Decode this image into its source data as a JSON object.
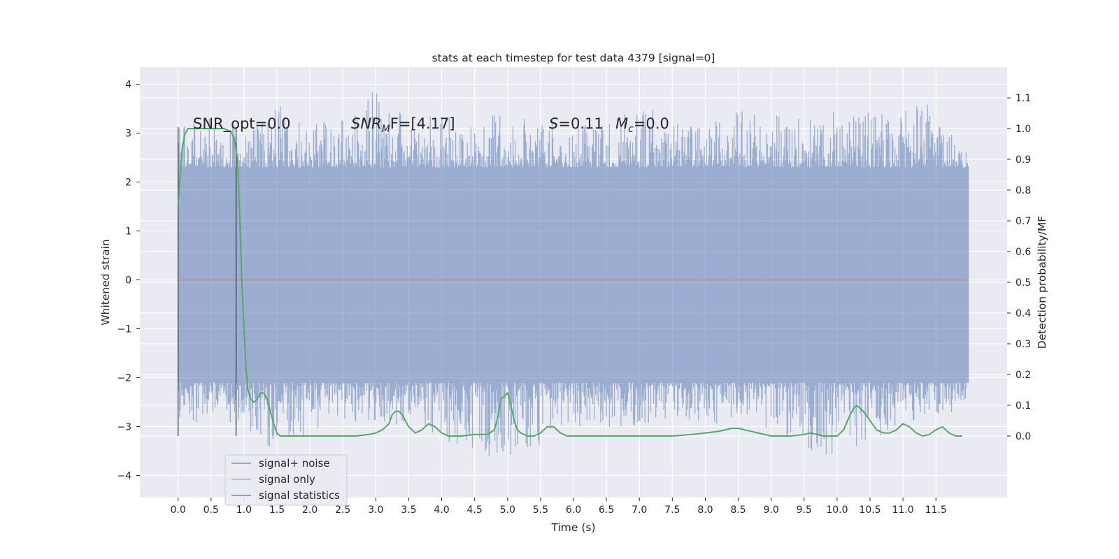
{
  "chart_data": {
    "type": "line",
    "title": "stats at each timestep for test data 4379 [signal=0]",
    "xlabel": "Time (s)",
    "ylabel": "Whitened strain",
    "ylabel_right": "Detection probability/MF",
    "xlim": [
      -0.58,
      12.58
    ],
    "ylim": [
      -4.45,
      4.35
    ],
    "ylim_right": [
      -0.2,
      1.2
    ],
    "xticks": [
      0.0,
      0.5,
      1.0,
      1.5,
      2.0,
      2.5,
      3.0,
      3.5,
      4.0,
      4.5,
      5.0,
      5.5,
      6.0,
      6.5,
      7.0,
      7.5,
      8.0,
      8.5,
      9.0,
      9.5,
      10.0,
      10.5,
      11.0,
      11.5
    ],
    "xtick_labels": [
      "0.0",
      "0.5",
      "1.0",
      "1.5",
      "2.0",
      "2.5",
      "3.0",
      "3.5",
      "4.0",
      "4.5",
      "5.0",
      "5.5",
      "6.0",
      "6.5",
      "7.0",
      "7.5",
      "8.0",
      "8.5",
      "9.0",
      "9.5",
      "10.0",
      "10.5",
      "11.0",
      "11.5"
    ],
    "yticks": [
      -4,
      -3,
      -2,
      -1,
      0,
      1,
      2,
      3,
      4
    ],
    "ytick_labels": [
      "−4",
      "−3",
      "−2",
      "−1",
      "0",
      "1",
      "2",
      "3",
      "4"
    ],
    "yticks_right": [
      0.0,
      0.1,
      0.2,
      0.3,
      0.4,
      0.5,
      0.6,
      0.7,
      0.8,
      0.9,
      1.0,
      1.1
    ],
    "ytick_labels_right": [
      "0.0",
      "0.1",
      "0.2",
      "0.3",
      "0.4",
      "0.5",
      "0.6",
      "0.7",
      "0.8",
      "0.9",
      "1.0",
      "1.1"
    ],
    "grid": true,
    "legend_position": "lower-left",
    "annotations": {
      "snr_opt": "SNR_opt=0.0",
      "snr_mf_italic": "SNR",
      "snr_mf_sub": "M",
      "snr_mf_tail": "F=[4.17]",
      "s_italic": "S",
      "s_tail": "=0.11",
      "mc_italic": "M",
      "mc_sub": "c",
      "mc_tail": "=0.0"
    },
    "vertical_lines": [
      0.0,
      0.88
    ],
    "series": [
      {
        "name": "signal+ noise",
        "color": "#4c72b0",
        "opacity": 0.5,
        "axis": "left",
        "x_range": [
          0.0,
          12.0
        ],
        "band_core": [
          -2.1,
          2.3
        ],
        "envelope": [
          [
            0.0,
            -3.2,
            3.1
          ],
          [
            0.5,
            -2.7,
            3.5
          ],
          [
            1.0,
            -3.1,
            3.0
          ],
          [
            1.5,
            -3.5,
            3.6
          ],
          [
            2.0,
            -3.2,
            3.2
          ],
          [
            2.5,
            -2.9,
            3.3
          ],
          [
            3.0,
            -3.0,
            3.9
          ],
          [
            3.5,
            -3.0,
            3.3
          ],
          [
            4.0,
            -3.3,
            3.4
          ],
          [
            4.5,
            -3.6,
            3.3
          ],
          [
            5.0,
            -3.6,
            3.4
          ],
          [
            5.5,
            -3.4,
            3.2
          ],
          [
            6.0,
            -3.0,
            3.4
          ],
          [
            6.5,
            -3.0,
            3.3
          ],
          [
            7.0,
            -3.1,
            3.6
          ],
          [
            7.5,
            -3.0,
            3.3
          ],
          [
            8.0,
            -3.0,
            3.2
          ],
          [
            8.5,
            -3.0,
            3.5
          ],
          [
            9.0,
            -3.1,
            3.4
          ],
          [
            9.5,
            -3.5,
            3.3
          ],
          [
            10.0,
            -3.6,
            3.5
          ],
          [
            10.5,
            -3.3,
            3.5
          ],
          [
            11.0,
            -3.1,
            3.5
          ],
          [
            11.5,
            -3.0,
            3.8
          ],
          [
            12.0,
            -2.4,
            2.6
          ]
        ]
      },
      {
        "name": "signal only",
        "color": "#dd8452",
        "opacity": 0.6,
        "axis": "left",
        "x": [
          0.0,
          12.0
        ],
        "y": [
          0.0,
          0.0
        ]
      },
      {
        "name": "signal statistics",
        "color": "#55a868",
        "opacity": 1,
        "axis": "right",
        "x": [
          0.0,
          0.03,
          0.06,
          0.1,
          0.15,
          0.2,
          0.3,
          0.4,
          0.5,
          0.6,
          0.7,
          0.8,
          0.85,
          0.9,
          0.93,
          0.96,
          1.0,
          1.03,
          1.06,
          1.1,
          1.15,
          1.2,
          1.25,
          1.3,
          1.35,
          1.4,
          1.45,
          1.5,
          1.55,
          1.6,
          1.7,
          2.0,
          2.5,
          2.7,
          2.9,
          3.0,
          3.1,
          3.2,
          3.25,
          3.3,
          3.35,
          3.4,
          3.5,
          3.6,
          3.7,
          3.75,
          3.8,
          3.9,
          4.0,
          4.1,
          4.3,
          4.5,
          4.6,
          4.7,
          4.8,
          4.85,
          4.9,
          4.95,
          5.0,
          5.05,
          5.1,
          5.15,
          5.2,
          5.3,
          5.4,
          5.5,
          5.6,
          5.65,
          5.7,
          5.8,
          5.9,
          6.0,
          6.5,
          7.0,
          7.5,
          7.8,
          8.0,
          8.2,
          8.4,
          8.5,
          8.6,
          8.8,
          9.0,
          9.3,
          9.5,
          9.6,
          9.7,
          9.8,
          10.0,
          10.1,
          10.2,
          10.25,
          10.3,
          10.35,
          10.4,
          10.5,
          10.6,
          10.7,
          10.8,
          10.9,
          11.0,
          11.1,
          11.2,
          11.3,
          11.4,
          11.5,
          11.6,
          11.7,
          11.8,
          11.9
        ],
        "y": [
          0.75,
          0.85,
          0.93,
          0.98,
          1.0,
          1.0,
          1.0,
          1.0,
          1.0,
          1.0,
          1.0,
          0.99,
          0.97,
          0.9,
          0.75,
          0.55,
          0.35,
          0.22,
          0.15,
          0.12,
          0.11,
          0.12,
          0.14,
          0.14,
          0.12,
          0.08,
          0.04,
          0.01,
          0.0,
          0.0,
          0.0,
          0.0,
          0.0,
          0.0,
          0.005,
          0.01,
          0.02,
          0.04,
          0.07,
          0.08,
          0.08,
          0.07,
          0.03,
          0.01,
          0.02,
          0.03,
          0.04,
          0.03,
          0.01,
          0.0,
          0.0,
          0.005,
          0.005,
          0.005,
          0.02,
          0.06,
          0.12,
          0.13,
          0.14,
          0.1,
          0.05,
          0.02,
          0.01,
          0.0,
          0.0,
          0.01,
          0.03,
          0.03,
          0.03,
          0.01,
          0.0,
          0.0,
          0.0,
          0.0,
          0.0,
          0.005,
          0.01,
          0.015,
          0.025,
          0.025,
          0.02,
          0.01,
          0.0,
          0.0,
          0.005,
          0.01,
          0.005,
          0.0,
          0.0,
          0.02,
          0.07,
          0.09,
          0.1,
          0.09,
          0.08,
          0.05,
          0.02,
          0.01,
          0.01,
          0.02,
          0.04,
          0.03,
          0.01,
          0.0,
          0.005,
          0.02,
          0.03,
          0.01,
          0.0,
          0.0
        ]
      }
    ]
  }
}
